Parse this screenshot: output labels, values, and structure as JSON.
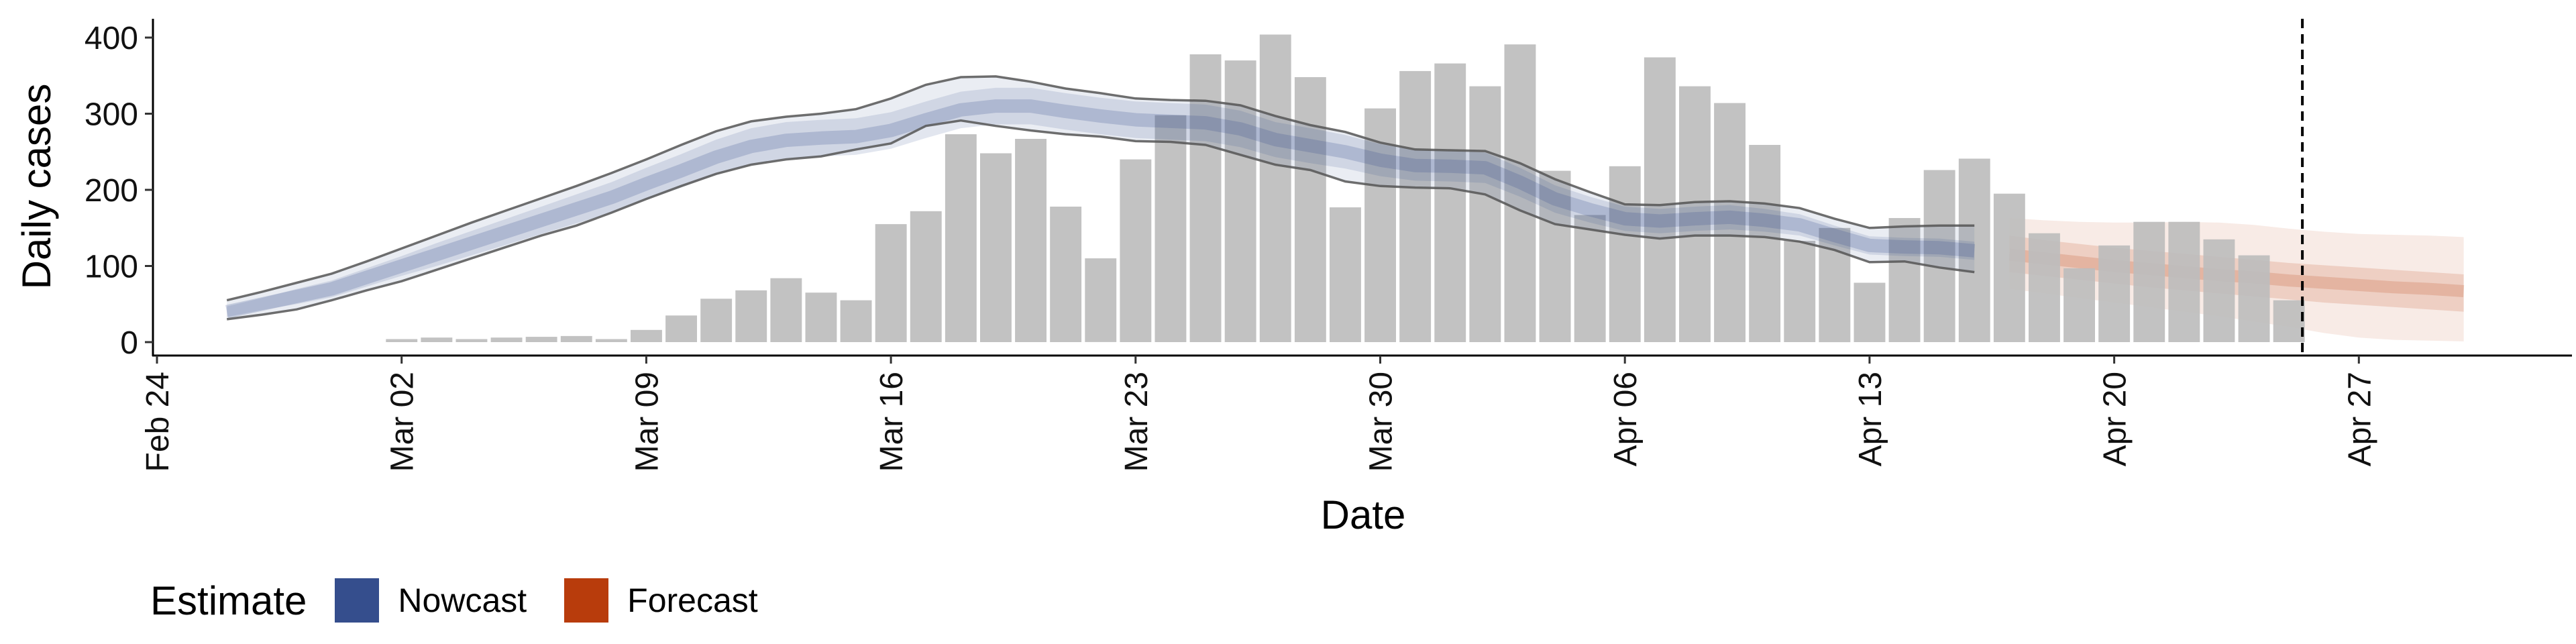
{
  "chart_data": {
    "type": "bar",
    "title": "",
    "xlabel": "Date",
    "ylabel": "Daily cases",
    "ylim": [
      -20,
      430
    ],
    "xlim": [
      "2020-02-23",
      "2020-05-02"
    ],
    "y_ticks": [
      0,
      100,
      200,
      300,
      400
    ],
    "x_ticks": [
      {
        "date": "2020-02-24",
        "label": "Feb 24"
      },
      {
        "date": "2020-03-02",
        "label": "Mar 02"
      },
      {
        "date": "2020-03-09",
        "label": "Mar 09"
      },
      {
        "date": "2020-03-16",
        "label": "Mar 16"
      },
      {
        "date": "2020-03-23",
        "label": "Mar 23"
      },
      {
        "date": "2020-03-30",
        "label": "Mar 30"
      },
      {
        "date": "2020-04-06",
        "label": "Apr 06"
      },
      {
        "date": "2020-04-13",
        "label": "Apr 13"
      },
      {
        "date": "2020-04-20",
        "label": "Apr 20"
      },
      {
        "date": "2020-04-27",
        "label": "Apr 27"
      }
    ],
    "grid": false,
    "legend": {
      "title": "Estimate",
      "position": "bottom-left",
      "items": [
        {
          "label": "Nowcast",
          "color": "#354e8d"
        },
        {
          "label": "Forecast",
          "color": "#b83c0c"
        }
      ]
    },
    "bar_color": "#bdbdbd",
    "vline": {
      "date": "2020-04-25",
      "style": "dashed",
      "color": "#000000"
    },
    "cases": {
      "dates": [
        "2020-03-02",
        "2020-03-03",
        "2020-03-04",
        "2020-03-05",
        "2020-03-06",
        "2020-03-07",
        "2020-03-08",
        "2020-03-09",
        "2020-03-10",
        "2020-03-11",
        "2020-03-12",
        "2020-03-13",
        "2020-03-14",
        "2020-03-15",
        "2020-03-16",
        "2020-03-17",
        "2020-03-18",
        "2020-03-19",
        "2020-03-20",
        "2020-03-21",
        "2020-03-22",
        "2020-03-23",
        "2020-03-24",
        "2020-03-25",
        "2020-03-26",
        "2020-03-27",
        "2020-03-28",
        "2020-03-29",
        "2020-03-30",
        "2020-03-31",
        "2020-04-01",
        "2020-04-02",
        "2020-04-03",
        "2020-04-04",
        "2020-04-05",
        "2020-04-06",
        "2020-04-07",
        "2020-04-08",
        "2020-04-09",
        "2020-04-10",
        "2020-04-11",
        "2020-04-12",
        "2020-04-13",
        "2020-04-14",
        "2020-04-15",
        "2020-04-16",
        "2020-04-17",
        "2020-04-18",
        "2020-04-19",
        "2020-04-20",
        "2020-04-21",
        "2020-04-22",
        "2020-04-23",
        "2020-04-24",
        "2020-04-25"
      ],
      "values": [
        4,
        6,
        4,
        6,
        7,
        8,
        4,
        16,
        35,
        57,
        68,
        84,
        65,
        55,
        155,
        172,
        273,
        248,
        267,
        178,
        110,
        240,
        298,
        378,
        370,
        404,
        348,
        177,
        307,
        356,
        366,
        336,
        391,
        225,
        167,
        231,
        374,
        336,
        314,
        259,
        133,
        150,
        78,
        163,
        226,
        241,
        195,
        143,
        97,
        127,
        158,
        158,
        135,
        114,
        55
      ]
    },
    "nowcast": {
      "dates": [
        "2020-02-26",
        "2020-02-27",
        "2020-02-28",
        "2020-02-29",
        "2020-03-01",
        "2020-03-02",
        "2020-03-03",
        "2020-03-04",
        "2020-03-05",
        "2020-03-06",
        "2020-03-07",
        "2020-03-08",
        "2020-03-09",
        "2020-03-10",
        "2020-03-11",
        "2020-03-12",
        "2020-03-13",
        "2020-03-14",
        "2020-03-15",
        "2020-03-16",
        "2020-03-17",
        "2020-03-18",
        "2020-03-19",
        "2020-03-20",
        "2020-03-21",
        "2020-03-22",
        "2020-03-23",
        "2020-03-24",
        "2020-03-25",
        "2020-03-26",
        "2020-03-27",
        "2020-03-28",
        "2020-03-29",
        "2020-03-30",
        "2020-03-31",
        "2020-04-01",
        "2020-04-02",
        "2020-04-03",
        "2020-04-04",
        "2020-04-05",
        "2020-04-06",
        "2020-04-07",
        "2020-04-08",
        "2020-04-09",
        "2020-04-10",
        "2020-04-11",
        "2020-04-12",
        "2020-04-13",
        "2020-04-14",
        "2020-04-15",
        "2020-04-16"
      ],
      "median": [
        40,
        50,
        60,
        70,
        85,
        100,
        115,
        130,
        145,
        160,
        175,
        190,
        208,
        225,
        243,
        257,
        265,
        268,
        270,
        278,
        292,
        305,
        310,
        310,
        303,
        297,
        292,
        290,
        288,
        280,
        266,
        258,
        250,
        239,
        232,
        231,
        229,
        210,
        188,
        174,
        162,
        159,
        162,
        164,
        160,
        154,
        140,
        127,
        125,
        124,
        120
      ],
      "lower_50": [
        33,
        42,
        50,
        59,
        73,
        87,
        100,
        114,
        128,
        142,
        156,
        170,
        187,
        203,
        220,
        233,
        241,
        244,
        246,
        254,
        268,
        281,
        286,
        286,
        279,
        273,
        268,
        266,
        264,
        256,
        243,
        235,
        228,
        218,
        212,
        211,
        209,
        191,
        170,
        157,
        146,
        143,
        146,
        148,
        145,
        140,
        127,
        115,
        113,
        112,
        108
      ],
      "upper_50": [
        47,
        58,
        70,
        81,
        97,
        113,
        130,
        146,
        162,
        178,
        194,
        210,
        229,
        247,
        266,
        281,
        289,
        292,
        294,
        302,
        316,
        329,
        334,
        334,
        327,
        321,
        316,
        314,
        312,
        304,
        289,
        281,
        272,
        260,
        252,
        251,
        249,
        229,
        206,
        191,
        178,
        175,
        178,
        180,
        175,
        168,
        153,
        139,
        137,
        136,
        132
      ],
      "lower_90": [
        30,
        36,
        43,
        55,
        68,
        80,
        95,
        110,
        125,
        140,
        153,
        170,
        188,
        205,
        221,
        233,
        240,
        244,
        253,
        261,
        284,
        291,
        284,
        278,
        273,
        270,
        264,
        263,
        259,
        246,
        233,
        226,
        211,
        205,
        203,
        202,
        194,
        173,
        155,
        148,
        141,
        136,
        140,
        140,
        138,
        132,
        121,
        105,
        106,
        98,
        92
      ],
      "upper_90": [
        55,
        66,
        78,
        90,
        106,
        123,
        140,
        157,
        173,
        189,
        205,
        222,
        240,
        259,
        277,
        290,
        296,
        300,
        306,
        320,
        338,
        348,
        349,
        342,
        333,
        327,
        320,
        318,
        317,
        311,
        297,
        285,
        276,
        262,
        253,
        252,
        251,
        235,
        214,
        197,
        181,
        180,
        184,
        185,
        182,
        176,
        162,
        150,
        152,
        153,
        153
      ]
    },
    "forecast": {
      "dates": [
        "2020-04-17",
        "2020-04-18",
        "2020-04-19",
        "2020-04-20",
        "2020-04-21",
        "2020-04-22",
        "2020-04-23",
        "2020-04-24",
        "2020-04-25",
        "2020-04-26",
        "2020-04-27",
        "2020-04-28",
        "2020-04-29",
        "2020-04-30"
      ],
      "median": [
        115,
        110,
        105,
        100,
        96,
        92,
        88,
        85,
        81,
        78,
        75,
        72,
        70,
        67
      ],
      "lower_50": [
        92,
        87,
        82,
        77,
        72,
        68,
        64,
        60,
        56,
        52,
        49,
        46,
        43,
        40
      ],
      "upper_50": [
        140,
        134,
        129,
        124,
        120,
        116,
        112,
        108,
        104,
        101,
        98,
        95,
        92,
        89
      ],
      "lower_90": [
        70,
        64,
        58,
        52,
        46,
        40,
        34,
        27,
        20,
        12,
        6,
        3,
        2,
        1
      ],
      "upper_90": [
        163,
        160,
        158,
        157,
        157,
        158,
        157,
        154,
        149,
        145,
        142,
        141,
        140,
        138
      ]
    }
  }
}
